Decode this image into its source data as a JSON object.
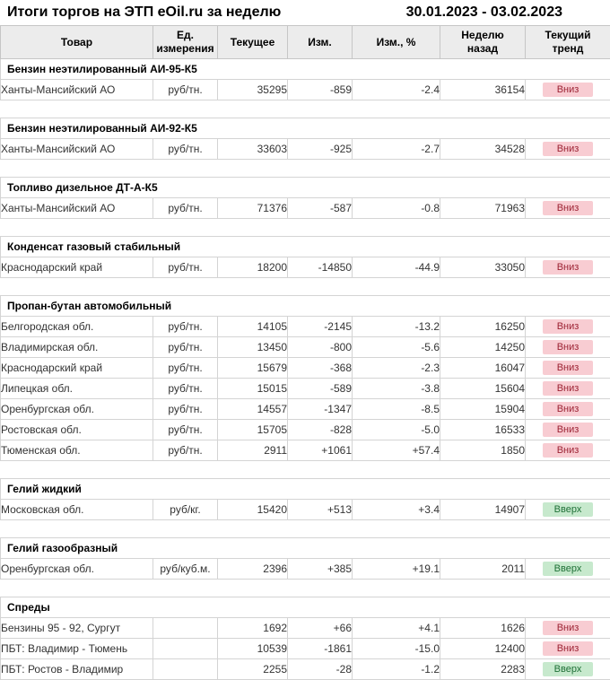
{
  "header": {
    "title": "Итоги торгов на ЭТП eOil.ru за неделю",
    "date_range": "30.01.2023 - 03.02.2023"
  },
  "table": {
    "columns": [
      {
        "label": "Товар"
      },
      {
        "label": "Ед.\nизмерения"
      },
      {
        "label": "Текущее"
      },
      {
        "label": "Изм."
      },
      {
        "label": "Изм., %"
      },
      {
        "label": "Неделю\nназад"
      },
      {
        "label": "Текущий\nтренд"
      }
    ],
    "sections": [
      {
        "title": "Бензин неэтилированный АИ-95-К5",
        "rows": [
          {
            "name": "Ханты-Мансийский АО",
            "unit": "руб/тн.",
            "current": "35295",
            "change": "-859",
            "change_pct": "-2.4",
            "week_ago": "36154",
            "trend": "Вниз",
            "trend_dir": "down"
          }
        ]
      },
      {
        "title": "Бензин неэтилированный АИ-92-К5",
        "rows": [
          {
            "name": "Ханты-Мансийский АО",
            "unit": "руб/тн.",
            "current": "33603",
            "change": "-925",
            "change_pct": "-2.7",
            "week_ago": "34528",
            "trend": "Вниз",
            "trend_dir": "down"
          }
        ]
      },
      {
        "title": "Топливо дизельное ДТ-А-К5",
        "rows": [
          {
            "name": "Ханты-Мансийский АО",
            "unit": "руб/тн.",
            "current": "71376",
            "change": "-587",
            "change_pct": "-0.8",
            "week_ago": "71963",
            "trend": "Вниз",
            "trend_dir": "down"
          }
        ]
      },
      {
        "title": "Конденсат газовый стабильный",
        "rows": [
          {
            "name": "Краснодарский край",
            "unit": "руб/тн.",
            "current": "18200",
            "change": "-14850",
            "change_pct": "-44.9",
            "week_ago": "33050",
            "trend": "Вниз",
            "trend_dir": "down"
          }
        ]
      },
      {
        "title": "Пропан-бутан автомобильный",
        "rows": [
          {
            "name": "Белгородская обл.",
            "unit": "руб/тн.",
            "current": "14105",
            "change": "-2145",
            "change_pct": "-13.2",
            "week_ago": "16250",
            "trend": "Вниз",
            "trend_dir": "down"
          },
          {
            "name": "Владимирская обл.",
            "unit": "руб/тн.",
            "current": "13450",
            "change": "-800",
            "change_pct": "-5.6",
            "week_ago": "14250",
            "trend": "Вниз",
            "trend_dir": "down"
          },
          {
            "name": "Краснодарский край",
            "unit": "руб/тн.",
            "current": "15679",
            "change": "-368",
            "change_pct": "-2.3",
            "week_ago": "16047",
            "trend": "Вниз",
            "trend_dir": "down"
          },
          {
            "name": "Липецкая обл.",
            "unit": "руб/тн.",
            "current": "15015",
            "change": "-589",
            "change_pct": "-3.8",
            "week_ago": "15604",
            "trend": "Вниз",
            "trend_dir": "down"
          },
          {
            "name": "Оренбургская обл.",
            "unit": "руб/тн.",
            "current": "14557",
            "change": "-1347",
            "change_pct": "-8.5",
            "week_ago": "15904",
            "trend": "Вниз",
            "trend_dir": "down"
          },
          {
            "name": "Ростовская обл.",
            "unit": "руб/тн.",
            "current": "15705",
            "change": "-828",
            "change_pct": "-5.0",
            "week_ago": "16533",
            "trend": "Вниз",
            "trend_dir": "down"
          },
          {
            "name": "Тюменская обл.",
            "unit": "руб/тн.",
            "current": "2911",
            "change": "+1061",
            "change_pct": "+57.4",
            "week_ago": "1850",
            "trend": "Вниз",
            "trend_dir": "down"
          }
        ]
      },
      {
        "title": "Гелий жидкий",
        "rows": [
          {
            "name": "Московская обл.",
            "unit": "руб/кг.",
            "current": "15420",
            "change": "+513",
            "change_pct": "+3.4",
            "week_ago": "14907",
            "trend": "Вверх",
            "trend_dir": "up"
          }
        ]
      },
      {
        "title": "Гелий газообразный",
        "rows": [
          {
            "name": "Оренбургская обл.",
            "unit": "руб/куб.м.",
            "current": "2396",
            "change": "+385",
            "change_pct": "+19.1",
            "week_ago": "2011",
            "trend": "Вверх",
            "trend_dir": "up"
          }
        ]
      },
      {
        "title": "Спреды",
        "rows": [
          {
            "name": "Бензины 95 - 92, Сургут",
            "unit": "",
            "current": "1692",
            "change": "+66",
            "change_pct": "+4.1",
            "week_ago": "1626",
            "trend": "Вниз",
            "trend_dir": "down"
          },
          {
            "name": "ПБТ: Владимир - Тюмень",
            "unit": "",
            "current": "10539",
            "change": "-1861",
            "change_pct": "-15.0",
            "week_ago": "12400",
            "trend": "Вниз",
            "trend_dir": "down"
          },
          {
            "name": "ПБТ: Ростов - Владимир",
            "unit": "",
            "current": "2255",
            "change": "-28",
            "change_pct": "-1.2",
            "week_ago": "2283",
            "trend": "Вверх",
            "trend_dir": "up"
          }
        ]
      }
    ]
  },
  "colors": {
    "negative_text": "#e00000",
    "positive_text": "#00a050",
    "trend_down_bg": "#f8ccd2",
    "trend_down_text": "#9c2233",
    "trend_up_bg": "#c7e9cd",
    "trend_up_text": "#1e7036",
    "header_bg": "#ececec",
    "border": "#d4d4d4",
    "border_dark": "#c6c6c6",
    "row_text": "#333333",
    "number_text": "#1a1a1a"
  }
}
